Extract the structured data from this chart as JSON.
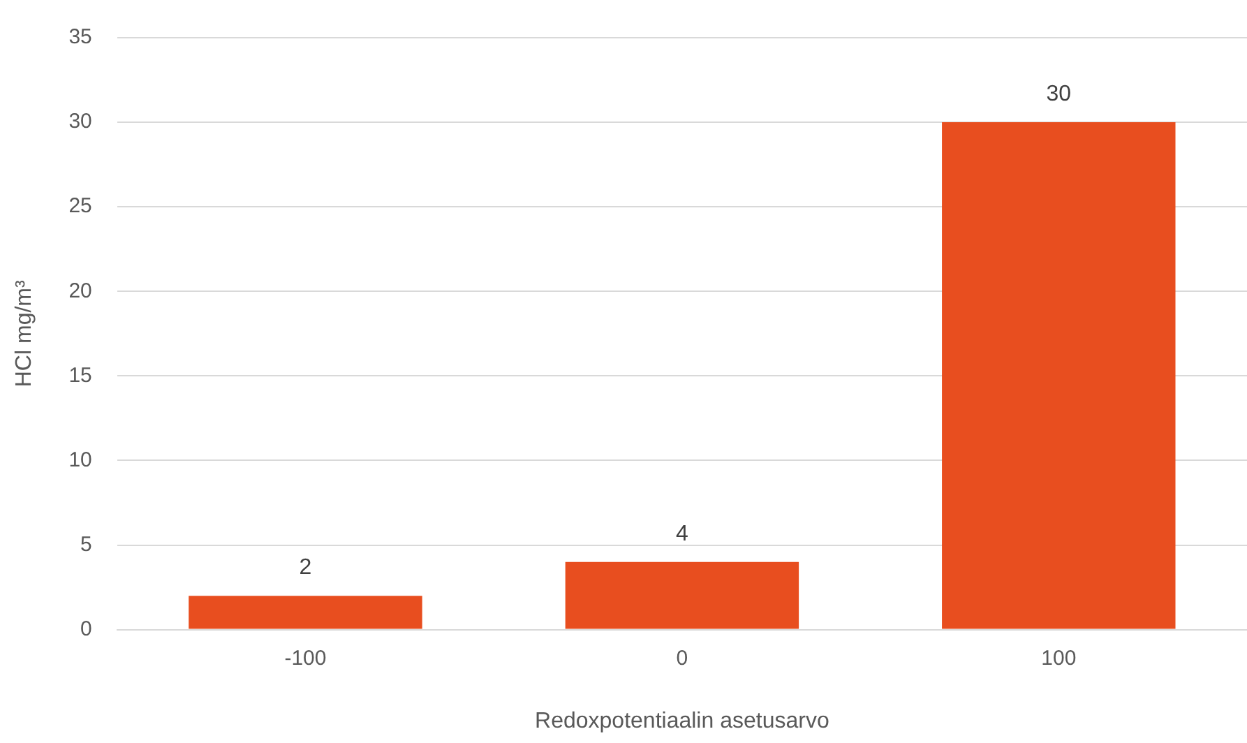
{
  "chart_data": {
    "type": "bar",
    "xlabel": "Redoxpotentiaalin asetusarvo",
    "ylabel": "HCl mg/m³",
    "categories": [
      "-100",
      "0",
      "100"
    ],
    "values": [
      2,
      4,
      30
    ],
    "color": "#e84e1f",
    "ylim": [
      0,
      35
    ],
    "yticks": [
      0,
      5,
      10,
      15,
      20,
      25,
      30,
      35
    ],
    "grid": "y",
    "data_labels": true,
    "legend": false
  }
}
